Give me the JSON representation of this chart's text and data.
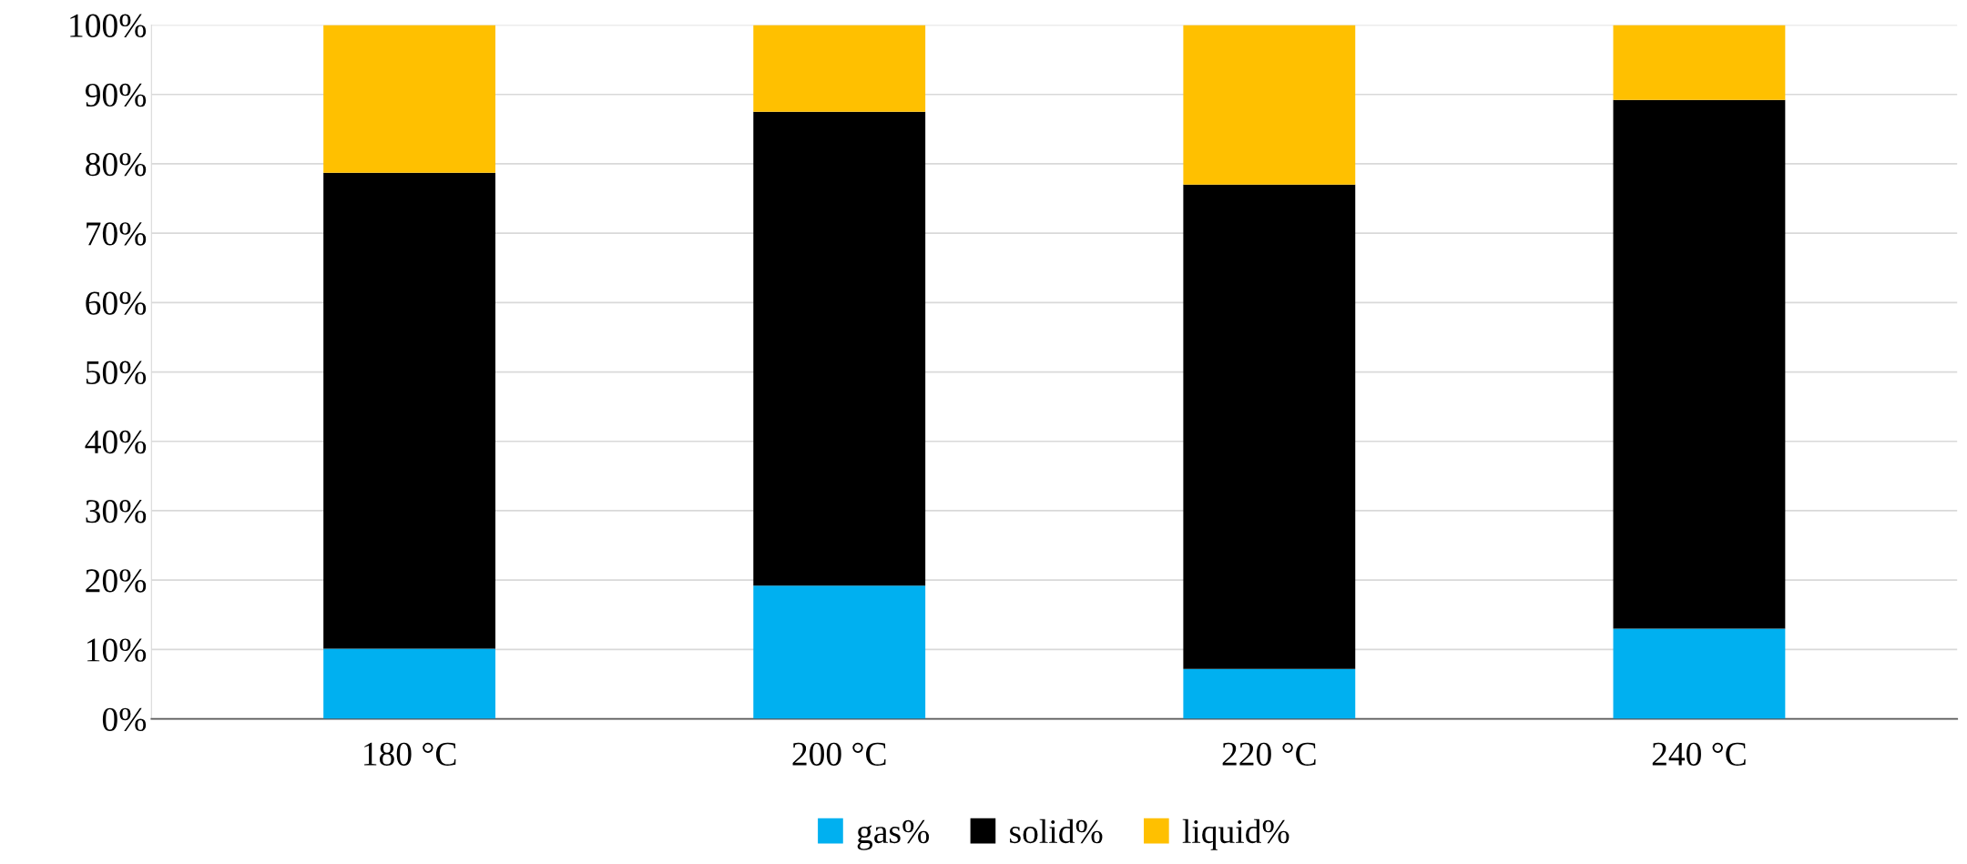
{
  "chart_data": {
    "type": "bar",
    "stacked": true,
    "categories": [
      "180 °C",
      "200 °C",
      "220 °C",
      "240 °C"
    ],
    "series": [
      {
        "name": "gas%",
        "color": "#00b0f0",
        "values": [
          10.1,
          19.2,
          7.2,
          13.0
        ]
      },
      {
        "name": "solid%",
        "color": "#000000",
        "values": [
          68.6,
          68.3,
          69.8,
          76.2
        ]
      },
      {
        "name": "liquid%",
        "color": "#ffc000",
        "values": [
          21.3,
          12.5,
          23.0,
          10.8
        ]
      }
    ],
    "ylim": [
      0,
      100
    ],
    "yticks": [
      {
        "value": 0,
        "label": "0%"
      },
      {
        "value": 10,
        "label": "10%"
      },
      {
        "value": 20,
        "label": "20%"
      },
      {
        "value": 30,
        "label": "30%"
      },
      {
        "value": 40,
        "label": "40%"
      },
      {
        "value": 50,
        "label": "50%"
      },
      {
        "value": 60,
        "label": "60%"
      },
      {
        "value": 70,
        "label": "70%"
      },
      {
        "value": 80,
        "label": "80%"
      },
      {
        "value": 90,
        "label": "90%"
      },
      {
        "value": 100,
        "label": "100%"
      }
    ],
    "grid": "y",
    "legend": "bottom"
  }
}
